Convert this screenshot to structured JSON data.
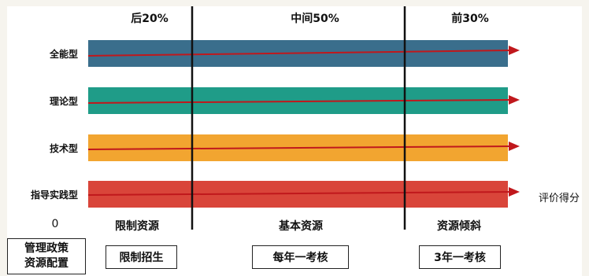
{
  "tiers": {
    "bottom": "后20%",
    "middle": "中间50%",
    "top": "前30%"
  },
  "rows": [
    {
      "label": "全能型",
      "color": "#3a6e8c"
    },
    {
      "label": "理论型",
      "color": "#1f9c88"
    },
    {
      "label": "技术型",
      "color": "#f2a530"
    },
    {
      "label": "指导实践型",
      "color": "#d9453a"
    }
  ],
  "arrow_color": "#c0181c",
  "axis": {
    "origin": "0",
    "arrow_label": "评价得分"
  },
  "resources": {
    "bottom": "限制资源",
    "middle": "基本资源",
    "top": "资源倾斜"
  },
  "policy": {
    "label_line1": "管理政策",
    "label_line2": "资源配置",
    "bottom": "限制招生",
    "middle": "每年一考核",
    "top": "3年一考核"
  }
}
